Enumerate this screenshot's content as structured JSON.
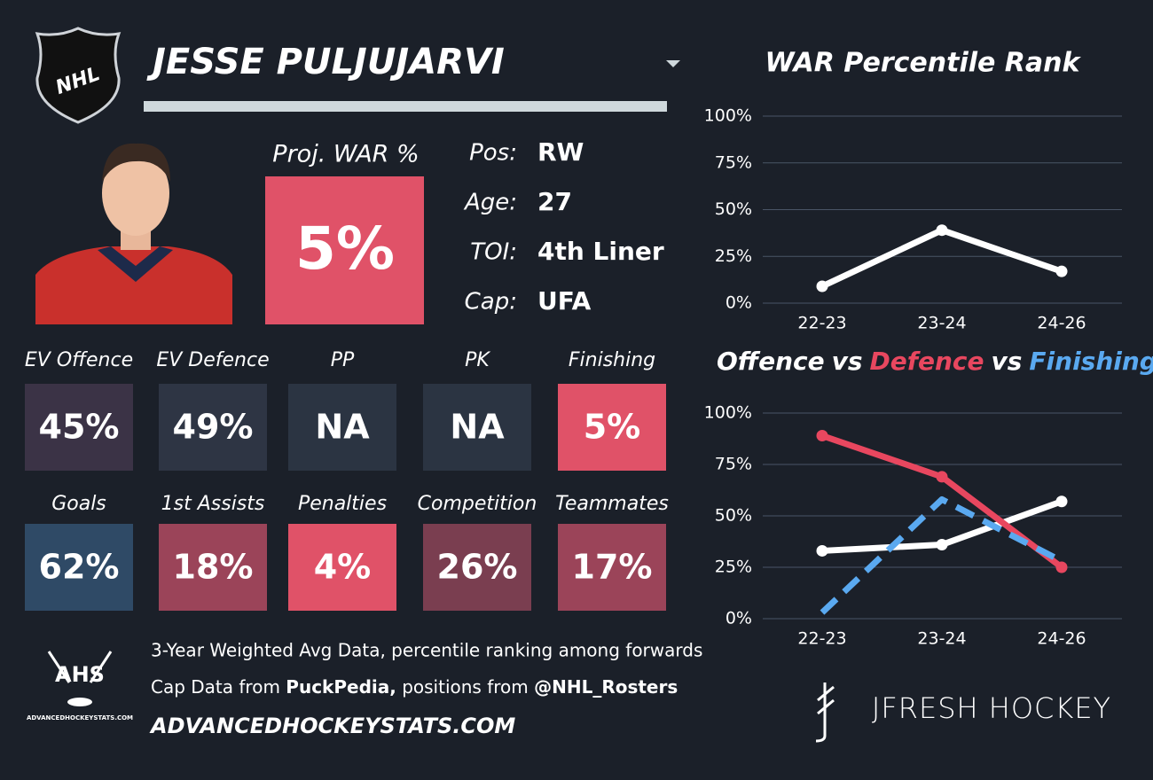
{
  "header": {
    "player_name": "JESSE PULJUJARVI"
  },
  "proj_war": {
    "label": "Proj. WAR %",
    "value": "5%",
    "color": "#e05268"
  },
  "bio": [
    {
      "label": "Pos:",
      "value": "RW"
    },
    {
      "label": "Age:",
      "value": "27"
    },
    {
      "label": "TOI:",
      "value": "4th Liner"
    },
    {
      "label": "Cap:",
      "value": "UFA"
    }
  ],
  "tiles": [
    {
      "label": "EV Offence",
      "value": "45%",
      "color": "#3b3346"
    },
    {
      "label": "EV Defence",
      "value": "49%",
      "color": "#2e3544"
    },
    {
      "label": "PP",
      "value": "NA",
      "color": "#2b3442"
    },
    {
      "label": "PK",
      "value": "NA",
      "color": "#2b3442"
    },
    {
      "label": "Finishing",
      "value": "5%",
      "color": "#e05268"
    },
    {
      "label": "Goals",
      "value": "62%",
      "color": "#2f4a66"
    },
    {
      "label": "1st Assists",
      "value": "18%",
      "color": "#9b4459"
    },
    {
      "label": "Penalties",
      "value": "4%",
      "color": "#e05268"
    },
    {
      "label": "Competition",
      "value": "26%",
      "color": "#7a3e50"
    },
    {
      "label": "Teammates",
      "value": "17%",
      "color": "#9b4459"
    }
  ],
  "footer": {
    "line1": "3-Year Weighted Avg Data, percentile ranking among forwards",
    "line2": [
      "Cap Data from ",
      "PuckPedia,",
      " positions from ",
      "@NHL_Rosters"
    ],
    "line3": "ADVANCEDHOCKEYSTATS.COM"
  },
  "logos": {
    "nhl": "NHL",
    "ahs": "AHS",
    "ahs_site": "ADVANCEDHOCKEYSTATS.COM",
    "brand": "JFRESH HOCKEY"
  },
  "chart_data": [
    {
      "type": "line",
      "title": "WAR Percentile Rank",
      "categories": [
        "22-23",
        "23-24",
        "24-26"
      ],
      "series": [
        {
          "color": "#ffffff",
          "values": [
            9,
            39,
            17
          ]
        }
      ],
      "ylim": [
        0,
        100
      ],
      "yticks": [
        {
          "value": 0,
          "label": "0%"
        },
        {
          "value": 25,
          "label": "25%"
        },
        {
          "value": 50,
          "label": "50%"
        },
        {
          "value": 75,
          "label": "75%"
        },
        {
          "value": 100,
          "label": "100%"
        }
      ],
      "grid": true
    },
    {
      "type": "line",
      "title_separator": "vs",
      "categories": [
        "22-23",
        "23-24",
        "24-26"
      ],
      "series": [
        {
          "name": "Offence",
          "color": "#ffffff",
          "values": [
            33,
            36,
            57
          ]
        },
        {
          "name": "Defence",
          "color": "#e8475f",
          "values": [
            89,
            69,
            25
          ]
        },
        {
          "name": "Finishing",
          "color": "#5aa9f0",
          "values": [
            3,
            58,
            28
          ],
          "dashed": true
        }
      ],
      "ylim": [
        0,
        100
      ],
      "yticks": [
        {
          "value": 0,
          "label": "0%"
        },
        {
          "value": 25,
          "label": "25%"
        },
        {
          "value": 50,
          "label": "50%"
        },
        {
          "value": 75,
          "label": "75%"
        },
        {
          "value": 100,
          "label": "100%"
        }
      ],
      "grid": true
    }
  ]
}
